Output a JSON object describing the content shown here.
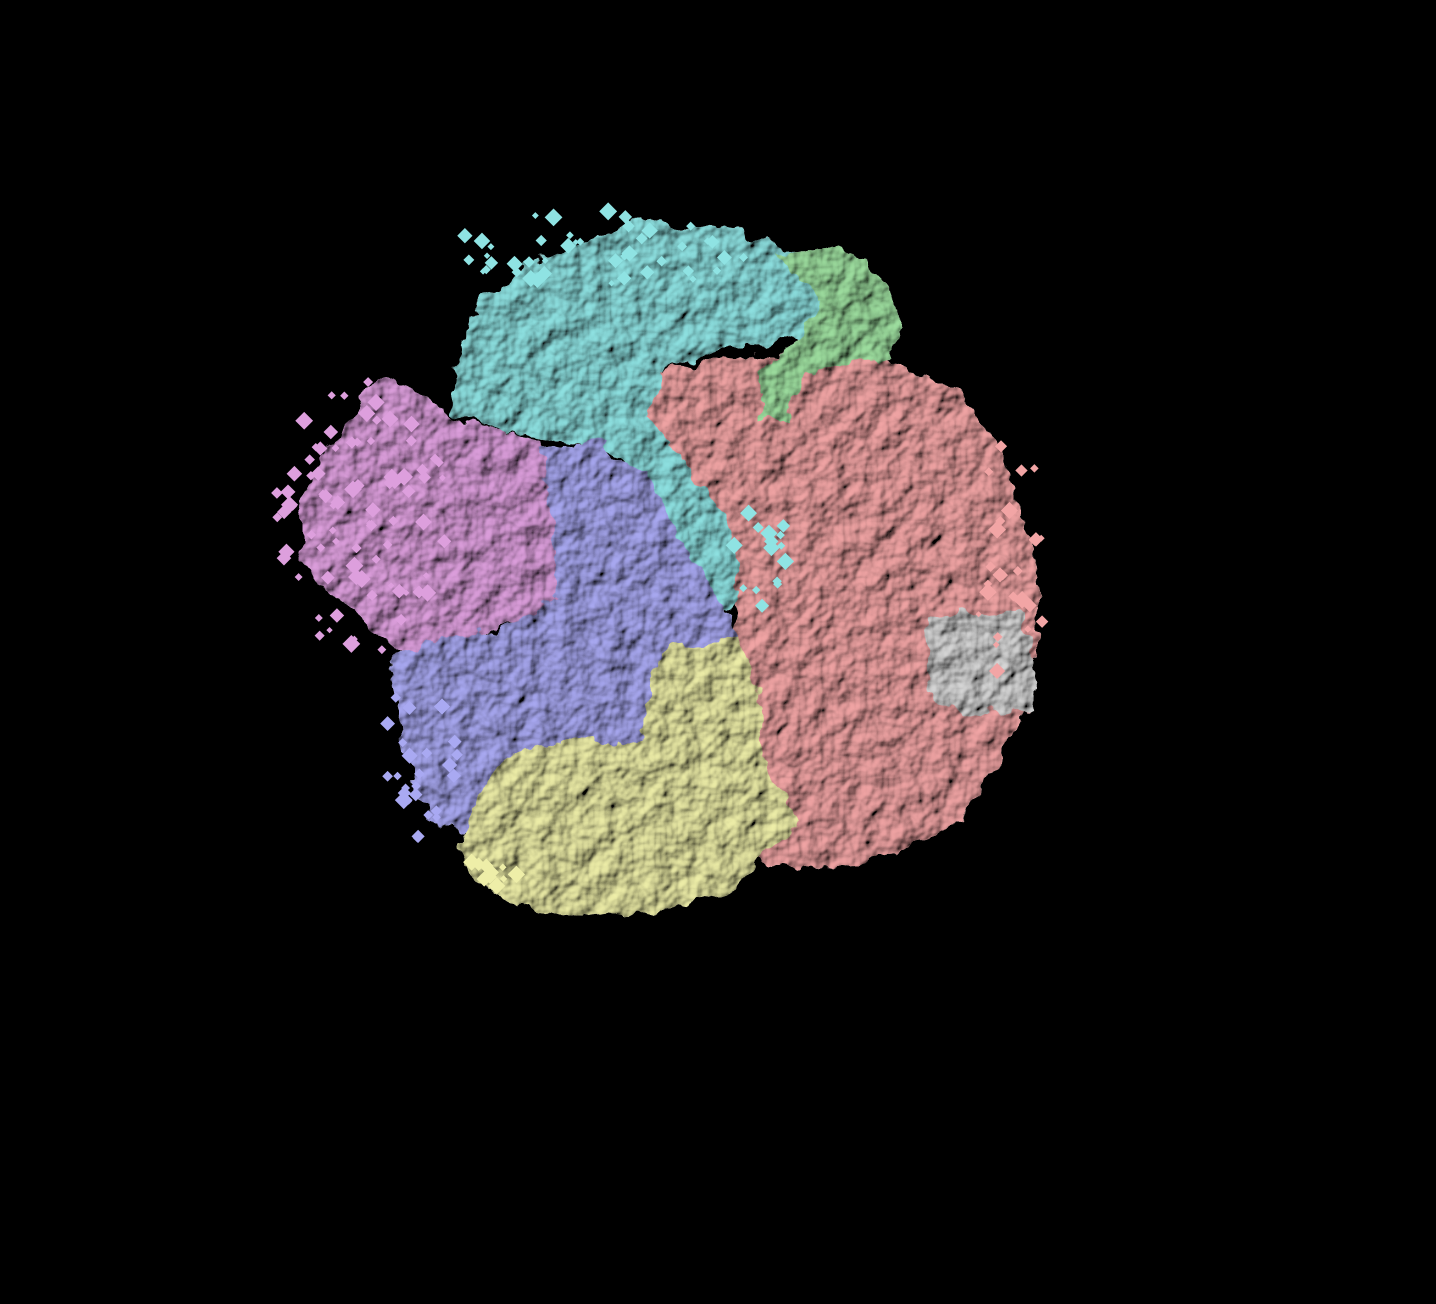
{
  "background_color": "#000000",
  "segments": [
    {
      "key": "cyan",
      "color": "#8fe3e3"
    },
    {
      "key": "green",
      "color": "#9fe0a0"
    },
    {
      "key": "salmon",
      "color": "#f2a5a5"
    },
    {
      "key": "pink",
      "color": "#dd9fdd"
    },
    {
      "key": "blue",
      "color": "#a9a9f2"
    },
    {
      "key": "yellow",
      "color": "#eeeea8"
    },
    {
      "key": "gray",
      "color": "#d8d8d8"
    }
  ]
}
